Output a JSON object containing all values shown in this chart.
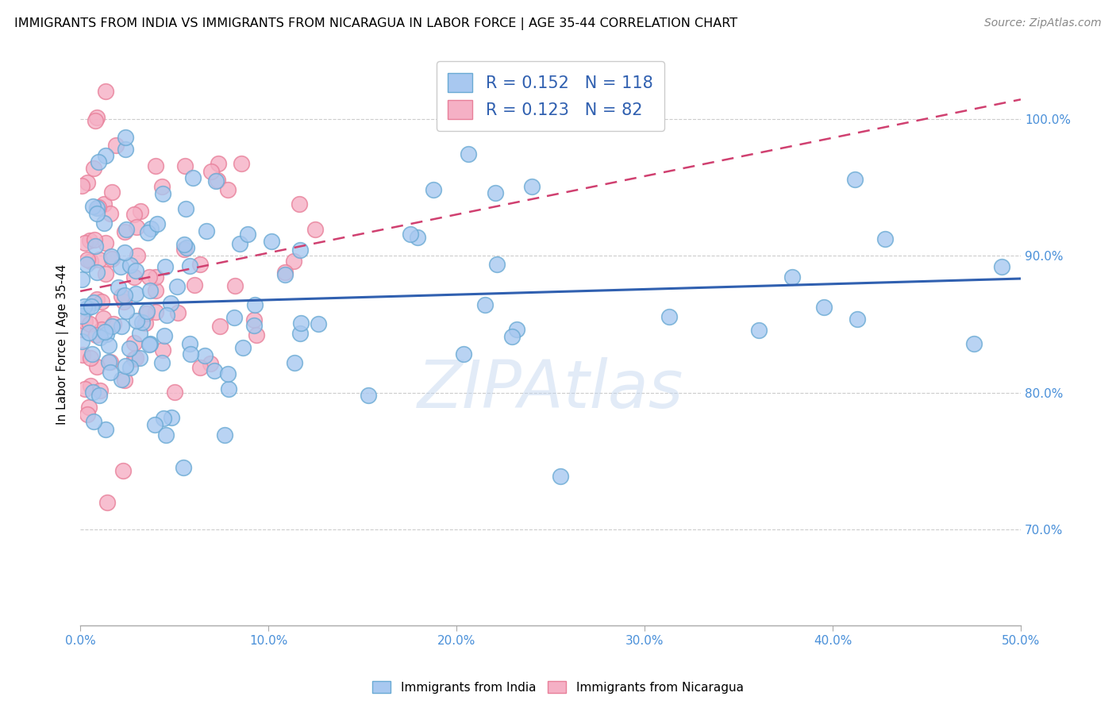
{
  "title": "IMMIGRANTS FROM INDIA VS IMMIGRANTS FROM NICARAGUA IN LABOR FORCE | AGE 35-44 CORRELATION CHART",
  "source": "Source: ZipAtlas.com",
  "ylabel": "In Labor Force | Age 35-44",
  "right_yticks": [
    70.0,
    80.0,
    90.0,
    100.0
  ],
  "xlim": [
    0.0,
    50.0
  ],
  "ylim": [
    63.0,
    104.0
  ],
  "india_color": "#a8c8f0",
  "india_edge": "#6aaad4",
  "nicaragua_color": "#f5b0c5",
  "nicaragua_edge": "#e8809a",
  "india_R": 0.152,
  "india_N": 118,
  "nicaragua_R": 0.123,
  "nicaragua_N": 82,
  "trend_india_color": "#3060b0",
  "trend_nicaragua_color": "#d04070",
  "watermark": "ZIPAtlas",
  "legend_R_color": "#3060b0",
  "legend_N_color": "#3060b0"
}
